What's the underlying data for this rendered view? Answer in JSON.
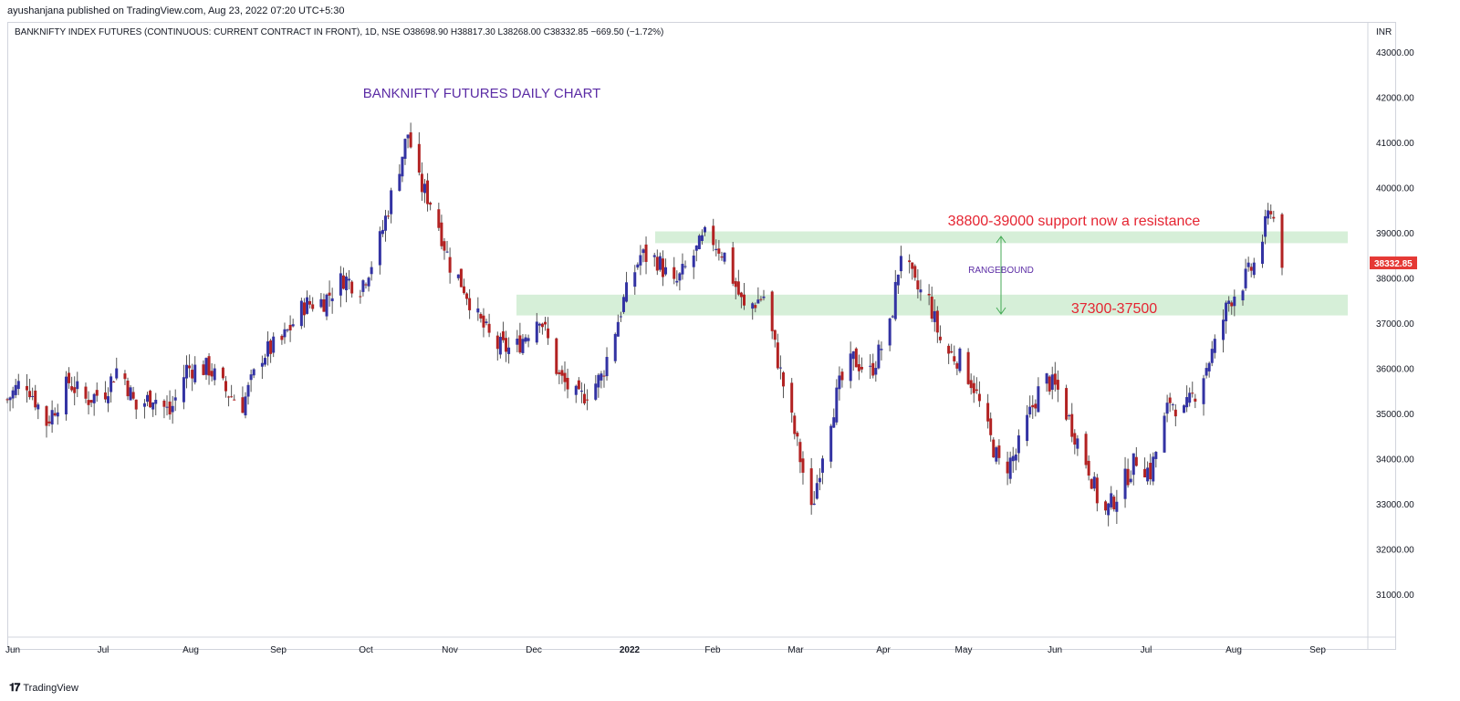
{
  "publisher": "ayushanjana published on TradingView.com, Aug 23, 2022 07:20 UTC+5:30",
  "symbol_line": "BANKNIFTY INDEX FUTURES (CONTINUOUS: CURRENT CONTRACT IN FRONT), 1D, NSE  O38698.90  H38817.30  L38268.00  C38332.85  −669.50 (−1.72%)",
  "footer_brand": "TradingView",
  "colors": {
    "up": "#3333a3",
    "down": "#b22222",
    "zone": "#d6efd8",
    "arrow": "#44aa55",
    "price_tag": "#e53935",
    "title": "#5b2ca5",
    "annotation": "#e52532"
  },
  "chart_data": {
    "type": "candlestick",
    "title": "BANKNIFTY FUTURES DAILY CHART",
    "currency": "INR",
    "last_price": "38332.85",
    "ylim": [
      30000,
      43500
    ],
    "y_ticks": [
      "43000.00",
      "42000.00",
      "41000.00",
      "40000.00",
      "39000.00",
      "38000.00",
      "37000.00",
      "36000.00",
      "35000.00",
      "34000.00",
      "33000.00",
      "32000.00",
      "31000.00"
    ],
    "x_labels": [
      "Jun",
      "Jul",
      "Aug",
      "Sep",
      "Oct",
      "Nov",
      "Dec",
      "2022",
      "Feb",
      "Mar",
      "Apr",
      "May",
      "Jun",
      "Jul",
      "Aug",
      "Sep"
    ],
    "zones": [
      {
        "low": 38800,
        "high": 39000,
        "label": "38800-39000 support now a resistance"
      },
      {
        "low": 37300,
        "high": 37500,
        "label": "37300-37500"
      }
    ],
    "range_label": "RANGEBOUND",
    "waypoints": [
      [
        0,
        35300
      ],
      [
        6,
        35800
      ],
      [
        14,
        34800
      ],
      [
        22,
        35700
      ],
      [
        28,
        35300
      ],
      [
        35,
        35500
      ],
      [
        40,
        36100
      ],
      [
        46,
        35100
      ],
      [
        52,
        35400
      ],
      [
        58,
        35000
      ],
      [
        64,
        36000
      ],
      [
        72,
        36000
      ],
      [
        78,
        35500
      ],
      [
        84,
        35200
      ],
      [
        91,
        36300
      ],
      [
        98,
        36600
      ],
      [
        106,
        37400
      ],
      [
        113,
        37500
      ],
      [
        120,
        38000
      ],
      [
        126,
        37800
      ],
      [
        132,
        38600
      ],
      [
        137,
        39800
      ],
      [
        143,
        41200
      ],
      [
        147,
        40100
      ],
      [
        152,
        39600
      ],
      [
        158,
        38300
      ],
      [
        163,
        37800
      ],
      [
        168,
        37100
      ],
      [
        174,
        36500
      ],
      [
        181,
        36400
      ],
      [
        190,
        37200
      ],
      [
        197,
        35800
      ],
      [
        204,
        35300
      ],
      [
        212,
        35800
      ],
      [
        220,
        37500
      ],
      [
        226,
        38500
      ],
      [
        232,
        38400
      ],
      [
        238,
        37800
      ],
      [
        245,
        38500
      ],
      [
        250,
        39000
      ],
      [
        256,
        38500
      ],
      [
        263,
        37300
      ],
      [
        270,
        37600
      ],
      [
        276,
        35900
      ],
      [
        282,
        34300
      ],
      [
        287,
        32800
      ],
      [
        292,
        34500
      ],
      [
        297,
        35600
      ],
      [
        302,
        36200
      ],
      [
        308,
        35900
      ],
      [
        315,
        36900
      ],
      [
        319,
        38600
      ],
      [
        324,
        37800
      ],
      [
        329,
        37500
      ],
      [
        334,
        36400
      ],
      [
        340,
        36200
      ],
      [
        345,
        35600
      ],
      [
        350,
        34600
      ],
      [
        355,
        33700
      ],
      [
        360,
        34100
      ],
      [
        365,
        35000
      ],
      [
        370,
        35800
      ],
      [
        375,
        35500
      ],
      [
        380,
        34700
      ],
      [
        386,
        33800
      ],
      [
        391,
        32700
      ],
      [
        397,
        33300
      ],
      [
        403,
        34000
      ],
      [
        408,
        33700
      ],
      [
        415,
        35300
      ],
      [
        420,
        35000
      ],
      [
        425,
        35600
      ],
      [
        431,
        36500
      ],
      [
        436,
        37500
      ],
      [
        441,
        37900
      ],
      [
        446,
        38400
      ],
      [
        451,
        39600
      ],
      [
        455,
        38400
      ]
    ]
  }
}
